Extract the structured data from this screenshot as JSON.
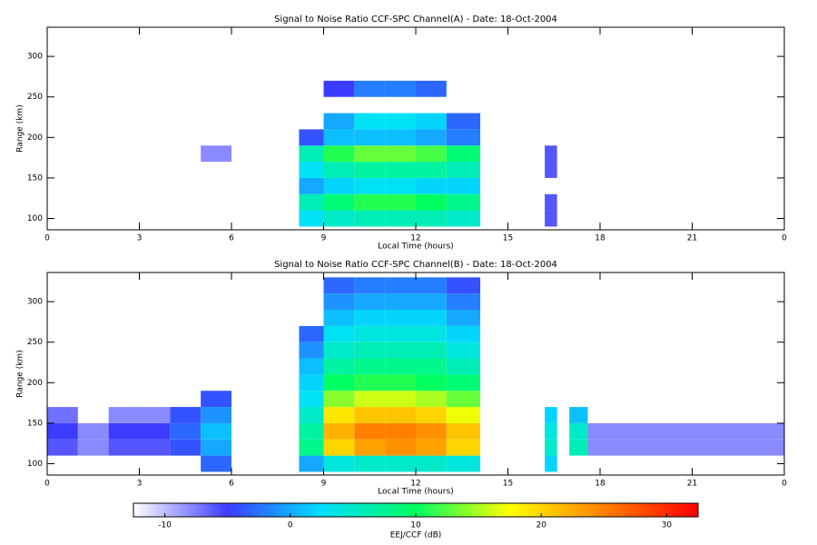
{
  "chart_data": [
    {
      "type": "heatmap",
      "title": "Signal to Noise Ratio CCF-SPC Channel(A) - Date: 18-Oct-2004",
      "xlabel": "Local Time (hours)",
      "ylabel": "Range (km)",
      "x": [
        0,
        1,
        2,
        3,
        4,
        5,
        6,
        8.2,
        9,
        10,
        11,
        12,
        13,
        14.1,
        16.2,
        16.6,
        17,
        17.6,
        24
      ],
      "y": [
        90,
        110,
        130,
        150,
        170,
        190,
        210,
        230,
        250,
        270,
        290,
        310,
        330
      ],
      "values": [
        [
          null,
          null,
          null,
          null,
          null,
          null,
          null,
          3,
          5,
          6,
          6,
          6,
          5,
          null,
          -6,
          null,
          null,
          null
        ],
        [
          null,
          null,
          null,
          null,
          null,
          null,
          null,
          6,
          9,
          11,
          11,
          10,
          8,
          null,
          -6,
          null,
          null,
          null
        ],
        [
          null,
          null,
          null,
          null,
          null,
          null,
          null,
          0,
          2,
          3,
          3,
          2,
          2,
          null,
          null,
          null,
          null,
          null
        ],
        [
          null,
          null,
          null,
          null,
          null,
          null,
          null,
          3,
          6,
          7,
          7,
          7,
          6,
          null,
          -6,
          null,
          null,
          null
        ],
        [
          null,
          null,
          null,
          null,
          null,
          -8,
          null,
          6,
          11,
          13,
          13,
          12,
          9,
          null,
          -6,
          null,
          null,
          null
        ],
        [
          null,
          null,
          null,
          null,
          null,
          null,
          null,
          -4,
          1,
          1,
          1,
          0,
          -2,
          null,
          null,
          null,
          null,
          null
        ],
        [
          null,
          null,
          null,
          null,
          null,
          null,
          null,
          null,
          0,
          3,
          3,
          2,
          -3,
          null,
          null,
          null,
          null,
          null
        ],
        [
          null,
          null,
          null,
          null,
          null,
          null,
          null,
          null,
          null,
          null,
          null,
          null,
          null,
          null,
          null,
          null,
          null,
          null
        ],
        [
          null,
          null,
          null,
          null,
          null,
          null,
          null,
          null,
          -5,
          -2,
          -2,
          -3,
          null,
          null,
          null,
          null,
          null,
          null
        ],
        [
          null,
          null,
          null,
          null,
          null,
          null,
          null,
          null,
          null,
          null,
          null,
          null,
          null,
          null,
          null,
          null,
          null,
          null
        ],
        [
          null,
          null,
          null,
          null,
          null,
          null,
          null,
          null,
          null,
          null,
          null,
          null,
          null,
          null,
          null,
          null,
          null,
          null
        ],
        [
          null,
          null,
          null,
          null,
          null,
          null,
          null,
          null,
          null,
          null,
          null,
          null,
          null,
          null,
          null,
          null,
          null,
          null
        ]
      ],
      "xlim": [
        0,
        24
      ],
      "ylim": [
        86,
        336
      ],
      "xticks": [
        0,
        3,
        6,
        9,
        12,
        15,
        18,
        21,
        {
          "value": 24,
          "label": "0"
        }
      ],
      "yticks": [
        100,
        150,
        200,
        250,
        300
      ]
    },
    {
      "type": "heatmap",
      "title": "Signal to Noise Ratio CCF-SPC Channel(B) - Date: 18-Oct-2004",
      "xlabel": "Local Time (hours)",
      "ylabel": "Range (km)",
      "x": [
        0,
        1,
        2,
        3,
        4,
        5,
        6,
        8.2,
        9,
        10,
        11,
        12,
        13,
        14.1,
        16.2,
        16.6,
        17,
        17.6,
        24
      ],
      "y": [
        90,
        110,
        130,
        150,
        170,
        190,
        210,
        230,
        250,
        270,
        290,
        310,
        330
      ],
      "values": [
        [
          null,
          null,
          null,
          null,
          null,
          -3,
          null,
          0,
          4,
          5,
          5,
          5,
          4,
          null,
          2,
          null,
          null,
          null
        ],
        [
          -6,
          -8,
          -6,
          -6,
          -4,
          0,
          null,
          8,
          20,
          23,
          24,
          23,
          20,
          null,
          5,
          null,
          6,
          -8
        ],
        [
          -5,
          -8,
          -5,
          -5,
          -3,
          1,
          null,
          7,
          22,
          25,
          25,
          24,
          21,
          null,
          4,
          null,
          5,
          -8
        ],
        [
          -7,
          null,
          -8,
          -8,
          -4,
          -1,
          null,
          5,
          19,
          21,
          21,
          20,
          17,
          null,
          2,
          null,
          1,
          null
        ],
        [
          null,
          null,
          null,
          null,
          null,
          -4,
          null,
          3,
          14,
          16,
          16,
          15,
          13,
          null,
          null,
          null,
          null,
          null
        ],
        [
          null,
          null,
          null,
          null,
          null,
          null,
          null,
          2,
          10,
          11,
          11,
          10,
          9,
          null,
          null,
          null,
          null,
          null
        ],
        [
          null,
          null,
          null,
          null,
          null,
          null,
          null,
          1,
          7,
          8,
          8,
          8,
          6,
          null,
          null,
          null,
          null,
          null
        ],
        [
          null,
          null,
          null,
          null,
          null,
          null,
          null,
          -1,
          5,
          6,
          6,
          6,
          4,
          null,
          null,
          null,
          null,
          null
        ],
        [
          null,
          null,
          null,
          null,
          null,
          null,
          null,
          -3,
          3,
          4,
          4,
          4,
          2,
          null,
          null,
          null,
          null,
          null
        ],
        [
          null,
          null,
          null,
          null,
          null,
          null,
          null,
          null,
          1,
          2,
          2,
          2,
          0,
          null,
          null,
          null,
          null,
          null
        ],
        [
          null,
          null,
          null,
          null,
          null,
          null,
          null,
          null,
          -1,
          0,
          0,
          0,
          -2,
          null,
          null,
          null,
          null,
          null
        ],
        [
          null,
          null,
          null,
          null,
          null,
          null,
          null,
          null,
          -3,
          -2,
          -2,
          -2,
          -4,
          null,
          null,
          null,
          null,
          null
        ]
      ],
      "xlim": [
        0,
        24
      ],
      "ylim": [
        86,
        336
      ],
      "xticks": [
        0,
        3,
        6,
        9,
        12,
        15,
        18,
        21,
        {
          "value": 24,
          "label": "0"
        }
      ],
      "yticks": [
        100,
        150,
        200,
        250,
        300
      ]
    }
  ],
  "colorbar": {
    "label": "EEJ/CCF (dB)",
    "clim": [
      -12.5,
      32.5
    ],
    "ticks": [
      -10,
      0,
      10,
      20,
      30
    ],
    "colors": [
      "#ffffff",
      "#3c3cff",
      "#00e0ff",
      "#00ff60",
      "#ffff00",
      "#ff8000",
      "#ff0000"
    ]
  }
}
